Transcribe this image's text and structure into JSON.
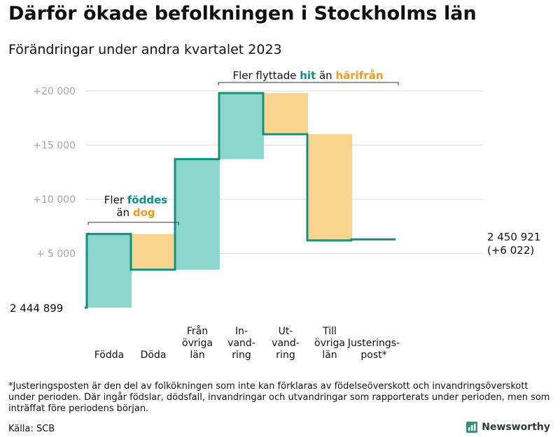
{
  "title": "Därför ökade befolkningen i Stockholms län",
  "subtitle": "Förändringar under andra kvartalet 2023",
  "chart_data": {
    "type": "waterfall",
    "base_value": 2444899,
    "base_label": "2 444  899",
    "ylim": [
      0,
      20000
    ],
    "yticks": [
      {
        "value": 5000,
        "label": "+  5  000"
      },
      {
        "value": 10000,
        "label": "+10   000"
      },
      {
        "value": 15000,
        "label": "+15   000"
      },
      {
        "value": 20000,
        "label": "+20   000"
      }
    ],
    "steps": [
      {
        "name": "Födda",
        "label_lines": [
          "Födda"
        ],
        "change": 6800,
        "color": "teal"
      },
      {
        "name": "Döda",
        "label_lines": [
          "Döda"
        ],
        "change": -3300,
        "color": "orange"
      },
      {
        "name": "Från övriga län",
        "label_lines": [
          "Från",
          "övriga",
          "län"
        ],
        "change": 10200,
        "color": "teal"
      },
      {
        "name": "Invandring",
        "label_lines": [
          "In-",
          "vand-",
          "ring"
        ],
        "change": 6100,
        "color": "teal"
      },
      {
        "name": "Utvandring",
        "label_lines": [
          "Ut-",
          "vand-",
          "ring"
        ],
        "change": -3800,
        "color": "orange"
      },
      {
        "name": "Till övriga län",
        "label_lines": [
          "Till",
          "övriga",
          "län"
        ],
        "change": -9800,
        "color": "orange"
      },
      {
        "name": "Justeringspost*",
        "label_lines": [
          "Justerings-",
          "post*"
        ],
        "change": 100,
        "color": "none"
      }
    ],
    "end_label": [
      "2 450 921",
      "(+6 022)"
    ],
    "colors": {
      "teal": "#8dd6cd",
      "orange": "#fad591",
      "line": "#15907f",
      "grid": "#dddddd",
      "tick": "#a6a6a6"
    },
    "annotations": {
      "births": {
        "line1": "Fler ",
        "line1_highlight": "föddes",
        "line2": "än ",
        "line2_highlight": "dog"
      },
      "migration": {
        "text": "Fler flyttade ",
        "highlight1": "hit",
        "mid": "  än ",
        "highlight2": "härifrån"
      }
    }
  },
  "footnote": "*Justeringsposten är den del av folkökningen som inte kan förklaras av födelseöverskott och invandringsöverskott under perioden. Där ingår födslar, dödsfall, invandringar och utvandringar som rapporterats under perioden, men som inträffat före periodens början.",
  "source": "Källa: SCB",
  "brand": "Newsworthy"
}
